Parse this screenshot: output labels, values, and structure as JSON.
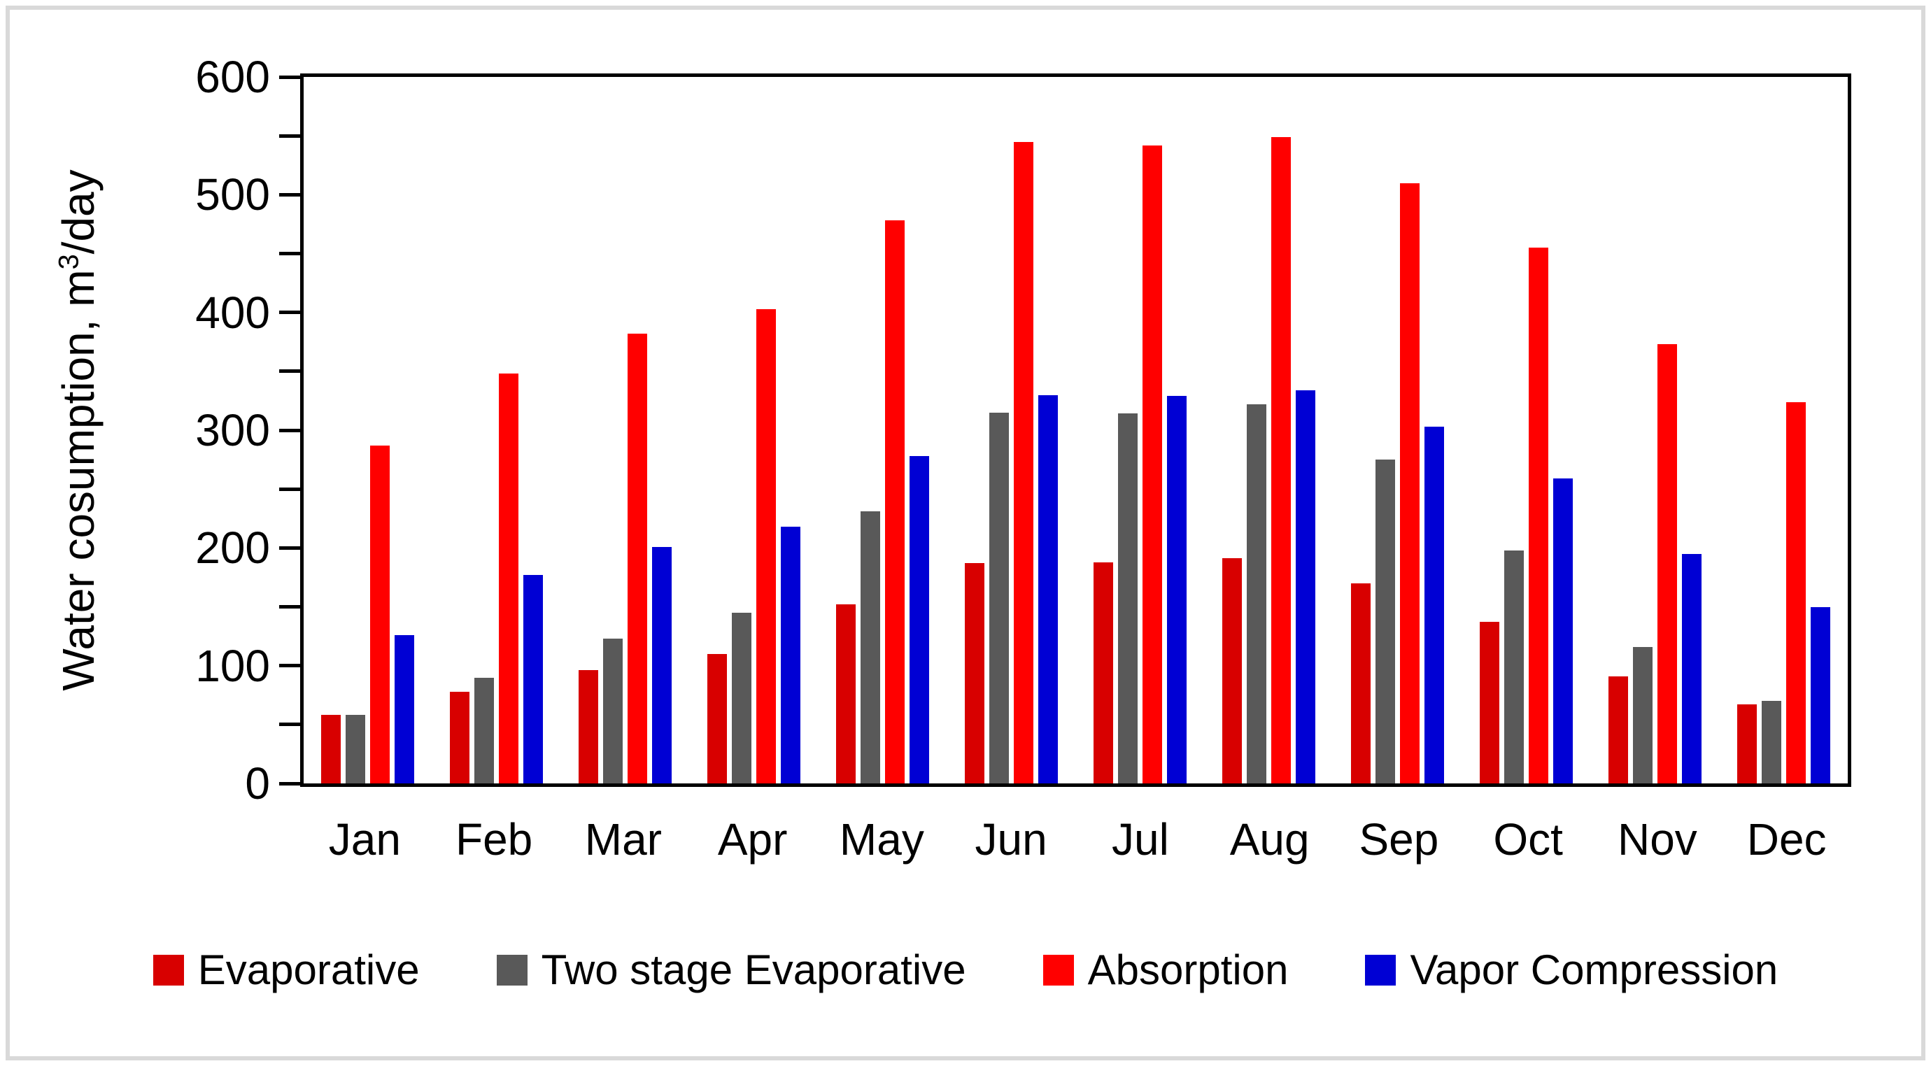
{
  "figure": {
    "background_color": "#FFFFFF",
    "border_color": "#D9D9D9",
    "axis_color": "#000000"
  },
  "chart_data": {
    "type": "bar",
    "title": "",
    "ylabel": "Water cosumption, m³/day",
    "ylabel_parts": {
      "prefix": "Water cosumption, m",
      "sup": "3",
      "suffix": "/day"
    },
    "xlabel": "",
    "ylim": [
      0,
      600
    ],
    "y_major_tick_step": 100,
    "y_minor_tick_step": 50,
    "y_major_tick_labels": [
      "0",
      "100",
      "200",
      "300",
      "400",
      "500",
      "600"
    ],
    "grid": false,
    "legend_position": "bottom",
    "categories": [
      "Jan",
      "Feb",
      "Mar",
      "Apr",
      "May",
      "Jun",
      "Jul",
      "Aug",
      "Sep",
      "Oct",
      "Nov",
      "Dec"
    ],
    "series": [
      {
        "name": "Evaporative",
        "color": "#D80000",
        "values": [
          58,
          78,
          96,
          110,
          152,
          187,
          188,
          191,
          170,
          137,
          91,
          67
        ]
      },
      {
        "name": "Two stage Evaporative",
        "color": "#595959",
        "values": [
          58,
          90,
          123,
          145,
          231,
          315,
          314,
          322,
          275,
          198,
          116,
          70
        ]
      },
      {
        "name": "Absorption",
        "color": "#FF0000",
        "values": [
          287,
          348,
          382,
          403,
          478,
          545,
          542,
          549,
          510,
          455,
          373,
          324
        ]
      },
      {
        "name": "Vapor Compression",
        "color": "#0000D4",
        "values": [
          126,
          177,
          201,
          218,
          278,
          330,
          329,
          334,
          303,
          259,
          195,
          150
        ]
      }
    ]
  }
}
